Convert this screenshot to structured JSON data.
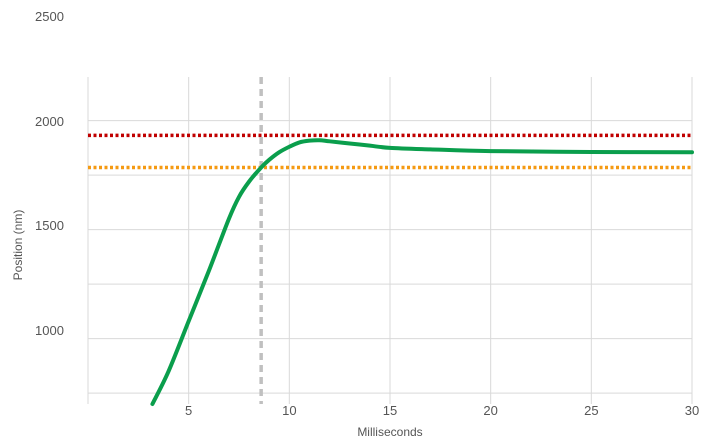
{
  "chart_data": {
    "type": "line",
    "title": "",
    "xlabel": "Milliseconds",
    "ylabel": "Position (nm)",
    "xlim": [
      0,
      30
    ],
    "ylim": [
      700,
      2500
    ],
    "x_ticks": [
      5,
      10,
      15,
      20,
      25,
      30
    ],
    "y_ticks": [
      1000,
      1500,
      2000,
      2500
    ],
    "grid": true,
    "series": [
      {
        "color": "#0a9e4c",
        "x": [
          3.2,
          4.0,
          5.0,
          6.0,
          7.0,
          7.5,
          8.0,
          8.6,
          9.0,
          9.5,
          10.0,
          10.5,
          11.0,
          11.5,
          12.0,
          13.0,
          14.0,
          15.0,
          17.0,
          20.0,
          25.0,
          30.0
        ],
        "y": [
          700,
          850,
          1080,
          1310,
          1550,
          1650,
          1720,
          1785,
          1820,
          1855,
          1880,
          1900,
          1908,
          1910,
          1905,
          1895,
          1885,
          1875,
          1868,
          1860,
          1856,
          1855
        ]
      }
    ],
    "reference_lines": [
      {
        "axis": "y",
        "value": 1932,
        "color": "#c00000",
        "style": "dotted"
      },
      {
        "axis": "y",
        "value": 1785,
        "color": "#f59a12",
        "style": "dotted"
      },
      {
        "axis": "x",
        "value": 8.6,
        "color": "#c0c0c0",
        "style": "dashed"
      }
    ]
  }
}
